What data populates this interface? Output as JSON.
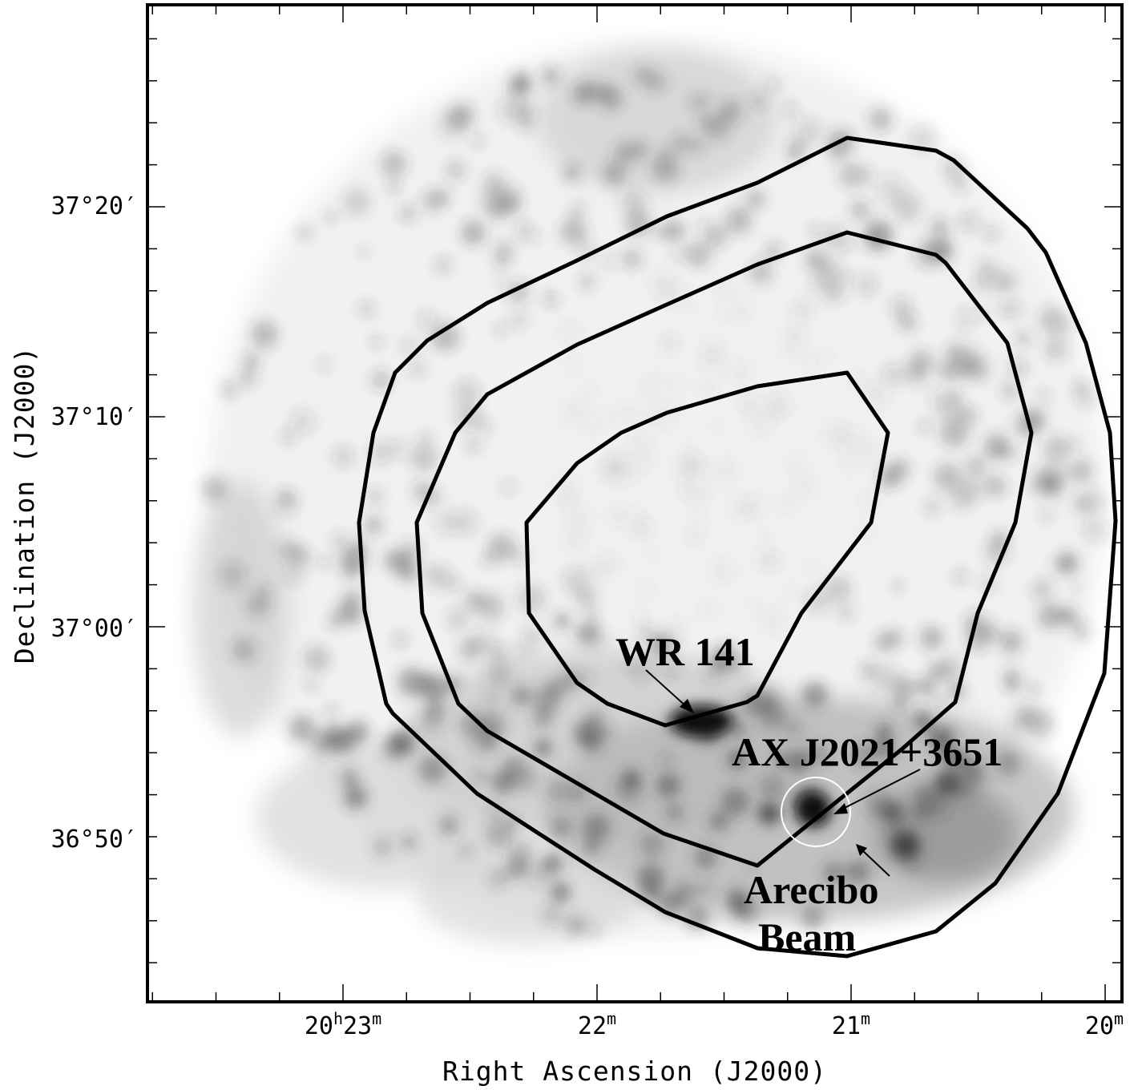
{
  "figure": {
    "ra_ticks": [
      {
        "h": "20",
        "m": "23"
      },
      {
        "h": "",
        "m": "22"
      },
      {
        "h": "",
        "m": "21"
      },
      {
        "h": "",
        "m": "20"
      }
    ],
    "dec_ticks": [
      "37°20′",
      "37°10′",
      "37°00′",
      "36°50′"
    ],
    "xlabel": "Right Ascension (J2000)",
    "ylabel": "Declination (J2000)",
    "annotations": {
      "wr141": "WR 141",
      "source": "AX J2021+3651",
      "beam_line1": "Arecibo",
      "beam_line2": "Beam"
    },
    "contour_levels": 3,
    "colors": {
      "ink": "#000000",
      "beam": "#ffffff",
      "background": "#ffffff"
    }
  }
}
